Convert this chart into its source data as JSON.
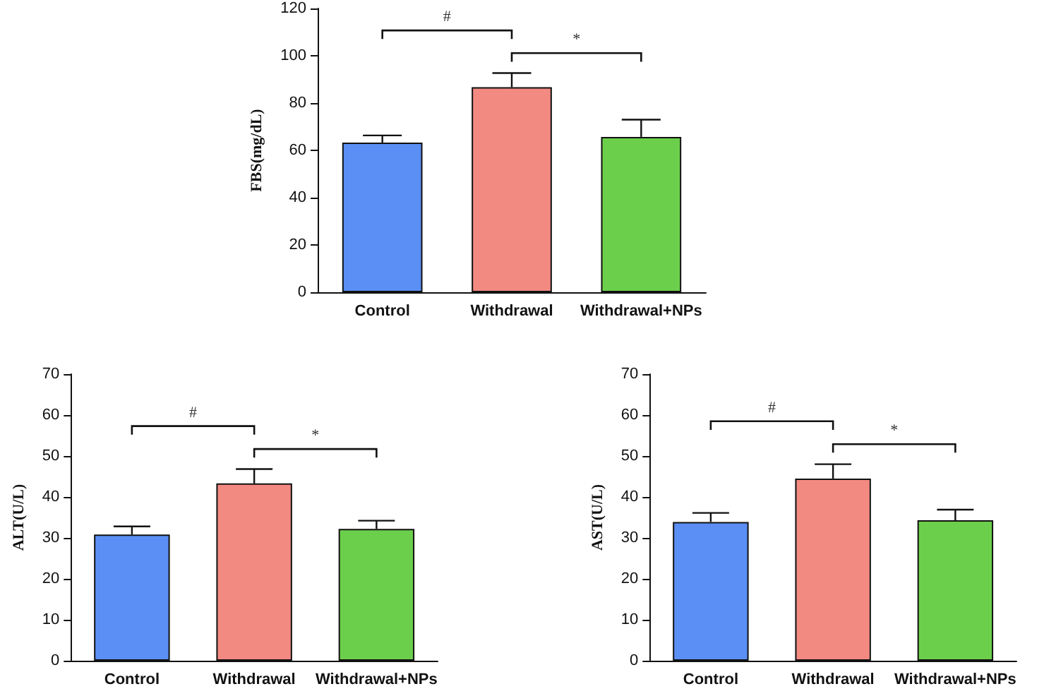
{
  "chart_data": [
    {
      "type": "bar",
      "ylabel": "FBS(mg/dL)",
      "categories": [
        "Control",
        "Withdrawal",
        "Withdrawal+NPs"
      ],
      "values": [
        63.3,
        86.7,
        65.7
      ],
      "errors": [
        3,
        6,
        7.3
      ],
      "colors": [
        "#5b8ff5",
        "#f28a82",
        "#6ccf4c"
      ],
      "ylim": [
        0,
        120
      ],
      "yticks": [
        0,
        20,
        40,
        60,
        80,
        100,
        120
      ],
      "grid": false,
      "annotations": [
        "#",
        "*"
      ]
    },
    {
      "type": "bar",
      "ylabel": "ALT(U/L)",
      "categories": [
        "Control",
        "Withdrawal",
        "Withdrawal+NPs"
      ],
      "values": [
        30.8,
        43.3,
        32.2
      ],
      "errors": [
        2,
        3.5,
        2
      ],
      "colors": [
        "#5b8ff5",
        "#f28a82",
        "#6ccf4c"
      ],
      "ylim": [
        0,
        70
      ],
      "yticks": [
        0,
        10,
        20,
        30,
        40,
        50,
        60,
        70
      ],
      "grid": false,
      "annotations": [
        "#",
        "*"
      ]
    },
    {
      "type": "bar",
      "ylabel": "AST(U/L)",
      "categories": [
        "Control",
        "Withdrawal",
        "Withdrawal+NPs"
      ],
      "values": [
        33.9,
        44.5,
        34.3
      ],
      "errors": [
        2.2,
        3.5,
        2.6
      ],
      "colors": [
        "#5b8ff5",
        "#f28a82",
        "#6ccf4c"
      ],
      "ylim": [
        0,
        70
      ],
      "yticks": [
        0,
        10,
        20,
        30,
        40,
        50,
        60,
        70
      ],
      "grid": false,
      "annotations": [
        "#",
        "*"
      ]
    }
  ]
}
